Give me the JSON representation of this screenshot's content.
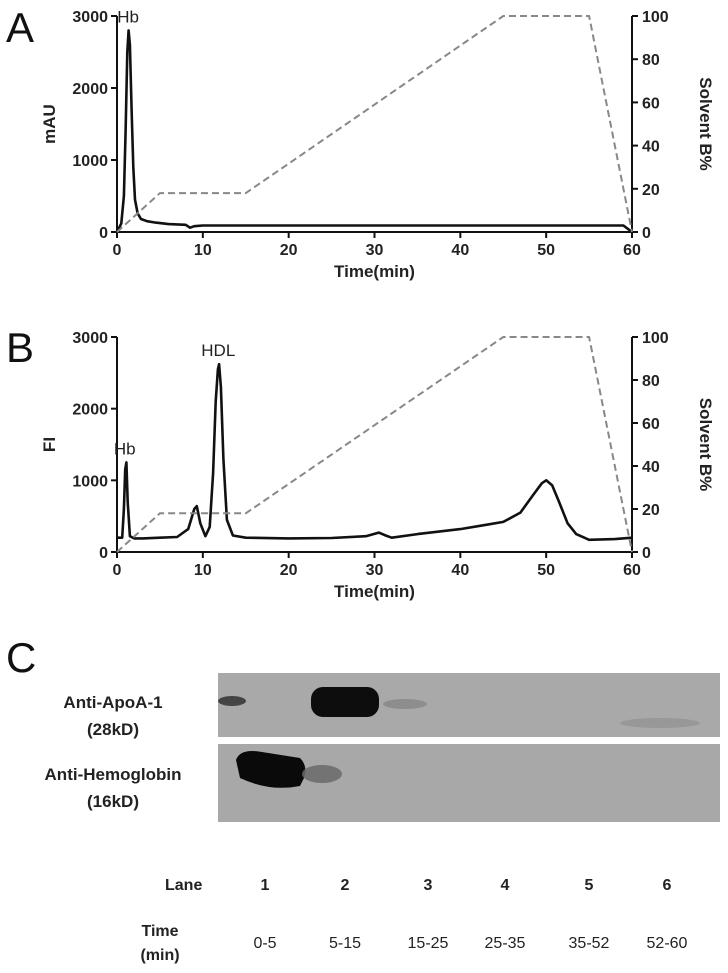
{
  "chart_data": [
    {
      "type": "line",
      "panel": "A",
      "xlabel": "Time(min)",
      "ylabel": "mAU",
      "y2label": "Solvent B%",
      "xlim": [
        0,
        60
      ],
      "ylim": [
        0,
        3000
      ],
      "y2lim": [
        0,
        100
      ],
      "xticks": [
        "0",
        "10",
        "20",
        "30",
        "40",
        "50",
        "60"
      ],
      "yticks": [
        "0",
        "1000",
        "2000",
        "3000"
      ],
      "y2ticks": [
        "0",
        "20",
        "40",
        "60",
        "80",
        "100"
      ],
      "annotations": [
        {
          "text": "Hb",
          "x": 1.3,
          "y": 2800
        }
      ],
      "series": [
        {
          "style": "solid",
          "color": "#111111",
          "x": [
            0,
            0.5,
            0.8,
            1.0,
            1.2,
            1.35,
            1.5,
            1.7,
            1.9,
            2.1,
            2.4,
            2.8,
            3.5,
            4.5,
            6,
            8,
            8.5,
            9,
            10,
            12,
            20,
            30,
            40,
            50,
            59,
            60
          ],
          "y": [
            0,
            120,
            500,
            1400,
            2500,
            2800,
            2600,
            1700,
            900,
            450,
            260,
            180,
            150,
            130,
            110,
            100,
            60,
            80,
            90,
            90,
            90,
            90,
            90,
            90,
            90,
            0
          ]
        },
        {
          "style": "dashed",
          "color": "#888888",
          "axis": "right",
          "x": [
            0,
            5,
            15,
            45,
            55,
            60
          ],
          "y": [
            0,
            18,
            18,
            100,
            100,
            0
          ]
        }
      ]
    },
    {
      "type": "line",
      "panel": "B",
      "xlabel": "Time(min)",
      "ylabel": "FI",
      "y2label": "Solvent B%",
      "xlim": [
        0,
        60
      ],
      "ylim": [
        0,
        3000
      ],
      "y2lim": [
        0,
        100
      ],
      "xticks": [
        "0",
        "10",
        "20",
        "30",
        "40",
        "50",
        "60"
      ],
      "yticks": [
        "0",
        "1000",
        "2000",
        "3000"
      ],
      "y2ticks": [
        "0",
        "20",
        "40",
        "60",
        "80",
        "100"
      ],
      "annotations": [
        {
          "text": "Hb",
          "x": 0.9,
          "y": 1250
        },
        {
          "text": "HDL",
          "x": 11.8,
          "y": 2620
        }
      ],
      "series": [
        {
          "style": "solid",
          "color": "#111111",
          "x": [
            0,
            0.6,
            0.8,
            0.95,
            1.1,
            1.25,
            1.5,
            2,
            3,
            5,
            7,
            8.3,
            9.0,
            9.3,
            9.7,
            10.3,
            10.8,
            11.2,
            11.5,
            11.75,
            11.9,
            12.1,
            12.4,
            12.8,
            13.5,
            15,
            20,
            25,
            29,
            30.5,
            31.3,
            32,
            35,
            40,
            43,
            45,
            47,
            48.5,
            49.5,
            50,
            50.7,
            51.5,
            52.5,
            53.5,
            55,
            58,
            60
          ],
          "y": [
            200,
            200,
            600,
            1150,
            1250,
            700,
            220,
            190,
            190,
            200,
            210,
            320,
            600,
            640,
            400,
            220,
            350,
            1100,
            2100,
            2550,
            2620,
            2300,
            1300,
            450,
            230,
            200,
            190,
            195,
            220,
            270,
            230,
            200,
            250,
            320,
            380,
            420,
            550,
            800,
            960,
            1000,
            930,
            700,
            400,
            250,
            170,
            180,
            200
          ]
        },
        {
          "style": "dashed",
          "color": "#888888",
          "axis": "right",
          "x": [
            0,
            5,
            15,
            45,
            55,
            60
          ],
          "y": [
            0,
            18,
            18,
            100,
            100,
            0
          ]
        }
      ]
    }
  ],
  "panels": {
    "a": "A",
    "b": "B",
    "c": "C"
  },
  "blot": {
    "rows": [
      {
        "name": "Anti-ApoA-1",
        "sub": "(28kD)"
      },
      {
        "name": "Anti-Hemoglobin",
        "sub": "(16kD)"
      }
    ],
    "lane_header": "Lane",
    "time_header_1": "Time",
    "time_header_2": "(min)",
    "lanes": [
      "1",
      "2",
      "3",
      "4",
      "5",
      "6"
    ],
    "times": [
      "0-5",
      "5-15",
      "15-25",
      "25-35",
      "35-52",
      "52-60"
    ]
  }
}
